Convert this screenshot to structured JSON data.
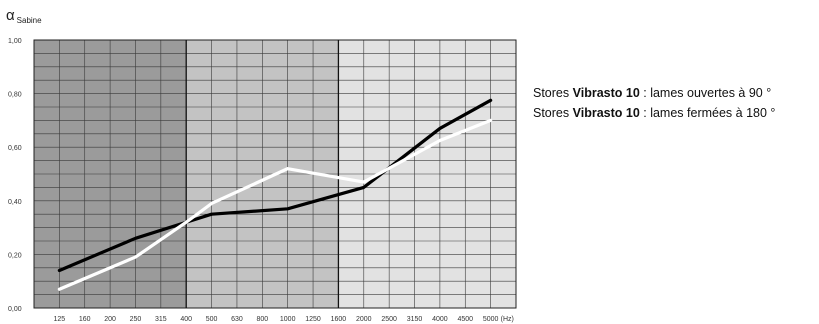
{
  "chart_data": {
    "type": "line",
    "ylabel": {
      "symbol": "α",
      "subscript": "Sabine"
    },
    "xunit": "(Hz)",
    "categories": [
      "125",
      "160",
      "200",
      "250",
      "315",
      "400",
      "500",
      "630",
      "800",
      "1000",
      "1250",
      "1600",
      "2000",
      "2500",
      "3150",
      "4000",
      "4500",
      "5000"
    ],
    "yticks": [
      "0,00",
      "0,20",
      "0,40",
      "0,60",
      "0,80",
      "1,00"
    ],
    "ylim": [
      0,
      1
    ],
    "grid": true,
    "legend_position": "right",
    "bands": [
      {
        "from": "125",
        "to": "400",
        "color": "#9b9b9b"
      },
      {
        "from": "400",
        "to": "1600",
        "color": "#c3c3c3"
      },
      {
        "from": "1600",
        "to": "5000",
        "color": "#e2e2e2"
      }
    ],
    "series": [
      {
        "name": "Stores Vibrasto 10 : lames ouvertes à 90 °",
        "color": "#000000",
        "points": [
          {
            "x": "125",
            "y": 0.14
          },
          {
            "x": "250",
            "y": 0.26
          },
          {
            "x": "400",
            "y": 0.32
          },
          {
            "x": "500",
            "y": 0.35
          },
          {
            "x": "1000",
            "y": 0.37
          },
          {
            "x": "2000",
            "y": 0.45
          },
          {
            "x": "4000",
            "y": 0.67
          },
          {
            "x": "5000",
            "y": 0.775
          }
        ]
      },
      {
        "name": "Stores Vibrasto 10 : lames fermées à 180 °",
        "color": "#ffffff",
        "points": [
          {
            "x": "125",
            "y": 0.07
          },
          {
            "x": "250",
            "y": 0.19
          },
          {
            "x": "400",
            "y": 0.32
          },
          {
            "x": "500",
            "y": 0.39
          },
          {
            "x": "1000",
            "y": 0.52
          },
          {
            "x": "2000",
            "y": 0.47
          },
          {
            "x": "4000",
            "y": 0.625
          },
          {
            "x": "5000",
            "y": 0.7
          }
        ]
      }
    ]
  },
  "legend": [
    {
      "prefix": "Stores ",
      "brand": "Vibrasto 10",
      "suffix": " : lames ouvertes à 90 °"
    },
    {
      "prefix": "Stores ",
      "brand": "Vibrasto 10",
      "suffix": " : lames fermées à 180 °"
    }
  ]
}
